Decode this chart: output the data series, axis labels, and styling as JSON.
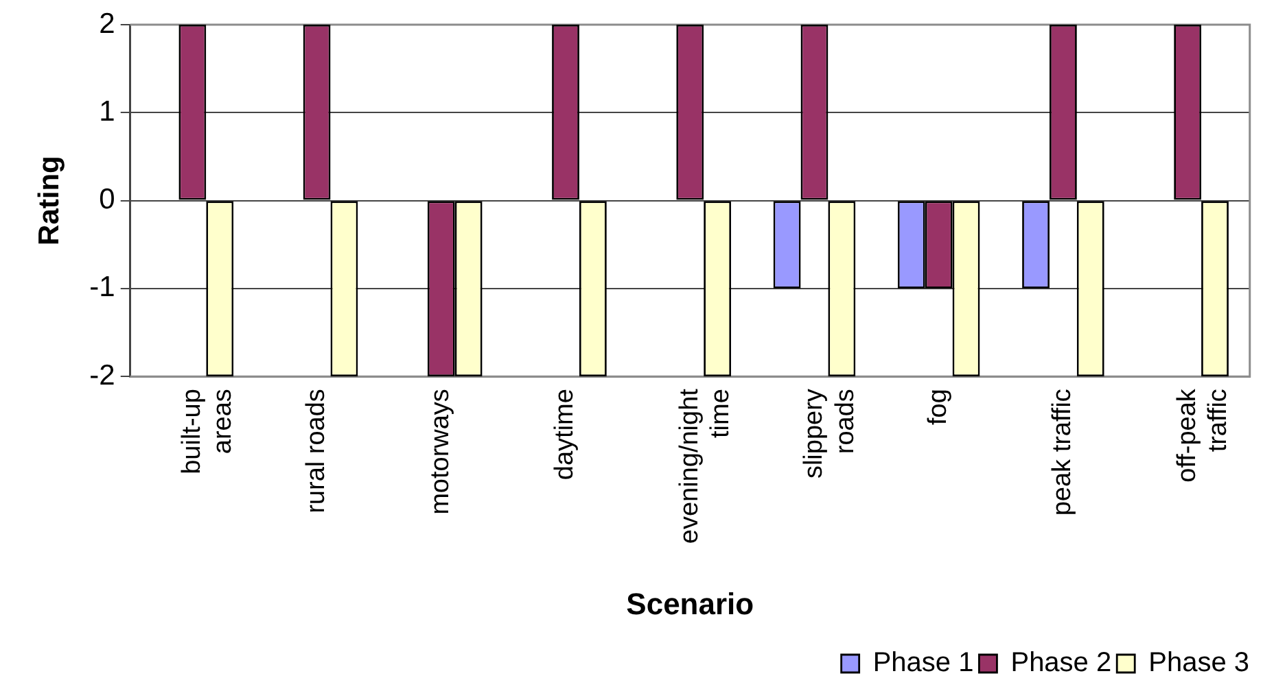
{
  "chart_data": {
    "type": "bar",
    "xlabel": "Scenario",
    "ylabel": "Rating",
    "categories": [
      "built-up areas",
      "rural roads",
      "motorways",
      "daytime",
      "evening/night time",
      "slippery roads",
      "fog",
      "peak traffic",
      "off-peak traffic"
    ],
    "series": [
      {
        "name": "Phase 1",
        "color": "#9999ff",
        "values": [
          0,
          0,
          0,
          0,
          0,
          -1,
          -1,
          -1,
          0
        ]
      },
      {
        "name": "Phase 2",
        "color": "#993366",
        "values": [
          2,
          2,
          -2,
          2,
          2,
          2,
          -1,
          2,
          2
        ]
      },
      {
        "name": "Phase 3",
        "color": "#ffffcc",
        "values": [
          -2,
          -2,
          -2,
          -2,
          -2,
          -2,
          -2,
          -2,
          -2
        ]
      }
    ],
    "ylim": [
      -2,
      2
    ],
    "yticks": [
      -2,
      -1,
      0,
      1,
      2
    ],
    "grid": "y",
    "legend": "bottom right"
  }
}
